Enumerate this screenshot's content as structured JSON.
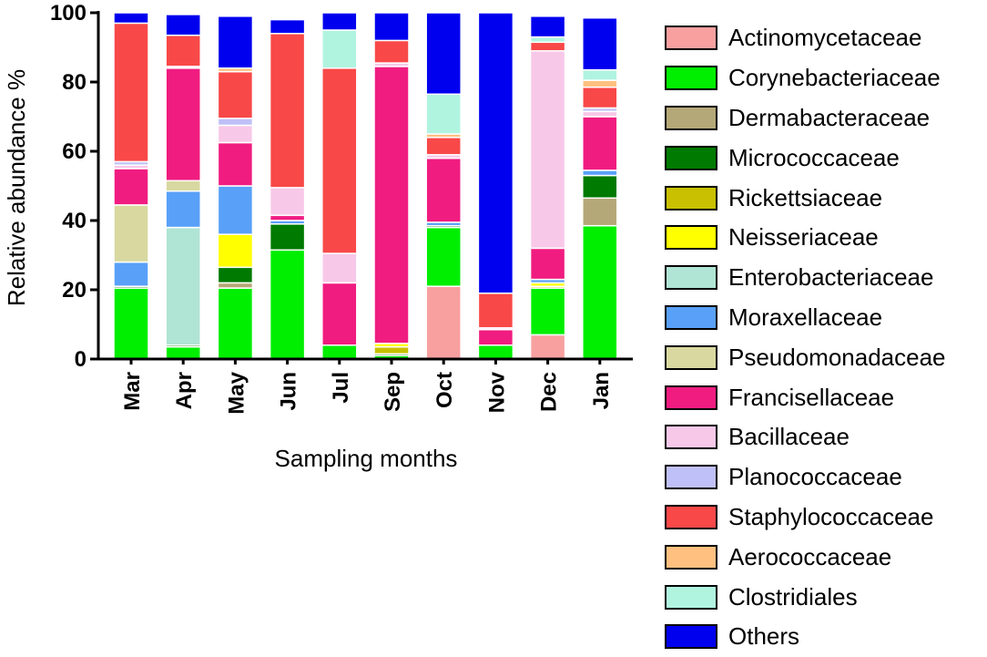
{
  "chart_data": {
    "type": "stacked-bar",
    "title": "",
    "xlabel": "Sampling months",
    "ylabel": "Relative abundance %",
    "ylim": [
      0,
      100
    ],
    "yticks": [
      0,
      20,
      40,
      60,
      80,
      100
    ],
    "legend_position": "right",
    "categories": [
      "Mar",
      "Apr",
      "May",
      "Jun",
      "Jul",
      "Sep",
      "Oct",
      "Nov",
      "Dec",
      "Jan"
    ],
    "series": [
      {
        "name": "Actinomycetaceae",
        "color": "#f8a0a0",
        "values": [
          0,
          0,
          0,
          0,
          0,
          0,
          21,
          0,
          7,
          0
        ]
      },
      {
        "name": "Corynebacteriaceae",
        "color": "#00ee00",
        "values": [
          20.5,
          3.5,
          20.5,
          31.5,
          4,
          1,
          17,
          4,
          13.5,
          38.5
        ]
      },
      {
        "name": "Dermabacteraceae",
        "color": "#b5a878",
        "values": [
          0,
          0,
          1.5,
          0,
          0,
          0,
          0,
          0,
          0,
          8
        ]
      },
      {
        "name": "Micrococcaceae",
        "color": "#007a00",
        "values": [
          0.5,
          0.5,
          4.5,
          7.5,
          0,
          0.5,
          0.5,
          0,
          0,
          6.5
        ]
      },
      {
        "name": "Rickettsiaceae",
        "color": "#c8c000",
        "values": [
          0,
          0,
          0,
          0,
          0,
          2,
          0,
          0,
          0.5,
          0
        ]
      },
      {
        "name": "Neisseriaceae",
        "color": "#ffff00",
        "values": [
          0,
          0,
          9.5,
          0,
          0,
          1,
          0,
          0,
          1,
          0
        ]
      },
      {
        "name": "Enterobacteriaceae",
        "color": "#b0e4d4",
        "values": [
          0,
          34,
          0,
          0,
          0,
          0,
          0,
          0,
          0,
          0
        ]
      },
      {
        "name": "Moraxellaceae",
        "color": "#59a0f8",
        "values": [
          7,
          10.5,
          14,
          1,
          0,
          0,
          1,
          0,
          1,
          1.5
        ]
      },
      {
        "name": "Pseudomonadaceae",
        "color": "#d8d8a0",
        "values": [
          16.5,
          3,
          0,
          0,
          0,
          0,
          0,
          0,
          0,
          0
        ]
      },
      {
        "name": "Francisellaceae",
        "color": "#f01c80",
        "values": [
          10.5,
          32.5,
          12.5,
          1.5,
          18,
          80,
          18.5,
          4.5,
          9,
          15.5
        ]
      },
      {
        "name": "Bacillaceae",
        "color": "#f8c8e8",
        "values": [
          1,
          0.5,
          5,
          8,
          8.5,
          1,
          1,
          0.5,
          57,
          1.5
        ]
      },
      {
        "name": "Planococcaceae",
        "color": "#c0c0f8",
        "values": [
          1,
          0,
          2,
          0,
          0,
          0,
          0,
          0,
          0,
          1
        ]
      },
      {
        "name": "Staphylococcaceae",
        "color": "#f84848",
        "values": [
          40,
          9,
          13.5,
          44.5,
          53.5,
          6.5,
          5,
          10,
          2.5,
          6
        ]
      },
      {
        "name": "Aerococcaceae",
        "color": "#ffc080",
        "values": [
          0,
          0,
          1,
          0,
          0,
          0,
          1,
          0,
          0,
          2
        ]
      },
      {
        "name": "Clostridiales",
        "color": "#b0f4e0",
        "values": [
          0,
          0,
          0,
          0,
          11,
          0,
          11.5,
          0,
          1.5,
          3
        ]
      },
      {
        "name": "Others",
        "color": "#0000ee",
        "values": [
          3,
          6,
          15,
          4,
          5,
          8,
          23.5,
          81,
          6,
          15
        ]
      }
    ]
  }
}
